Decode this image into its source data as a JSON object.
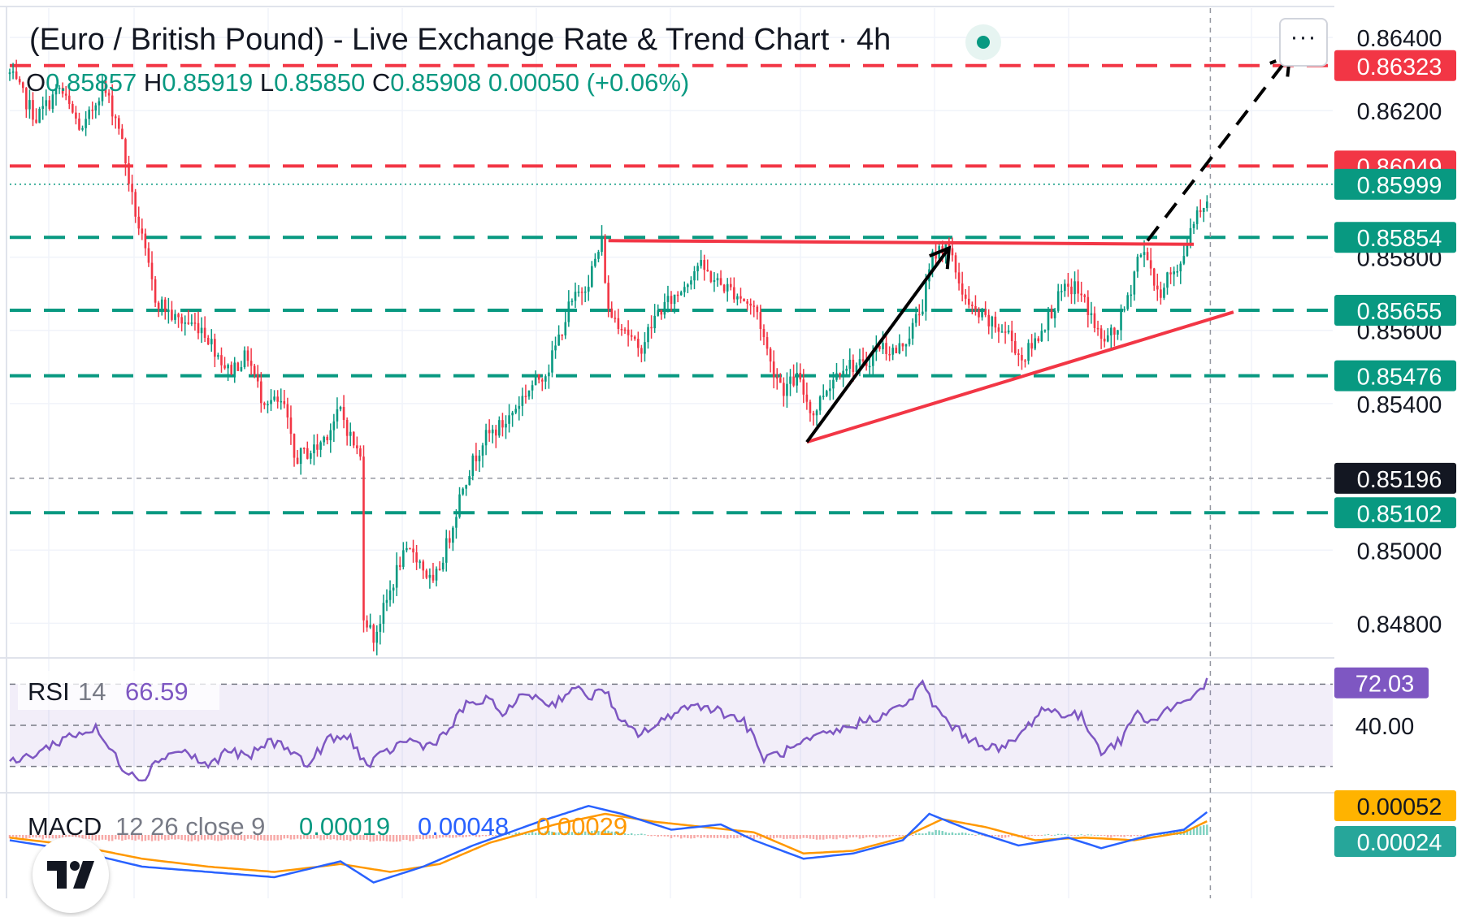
{
  "header": {
    "title": "(Euro / British Pound) - Live Exchange Rate & Trend Chart · 4h",
    "ohlc": {
      "o_label": "O",
      "o": "0.85857",
      "h_label": "H",
      "h": "0.85919",
      "l_label": "L",
      "l": "0.85850",
      "c_label": "C",
      "c": "0.85908",
      "change": "0.00050 (+0.06%)"
    },
    "more_label": "···"
  },
  "colors": {
    "up": "#089981",
    "down": "#f23645",
    "rsi": "#7e57c2",
    "macd": "#2962ff",
    "signal": "#ff9800",
    "resistance": "#f23645",
    "support": "#089981"
  },
  "chart_data": [
    {
      "type": "candlestick",
      "ylim": [
        0.8471,
        0.8648
      ],
      "y_ticks": [
        "0.86400",
        "0.86200",
        "0.85800",
        "0.85600",
        "0.85400",
        "0.85000",
        "0.84800"
      ],
      "y_tick_values": [
        0.864,
        0.862,
        0.858,
        0.856,
        0.854,
        0.85,
        0.848
      ],
      "price_labels": [
        {
          "text": "0.86323",
          "value": 0.86323,
          "kind": "resistance"
        },
        {
          "text": "0.86049",
          "value": 0.86049,
          "kind": "resistance"
        },
        {
          "text": "0.85999",
          "value": 0.85999,
          "kind": "current"
        },
        {
          "text": "0.85854",
          "value": 0.85854,
          "kind": "support"
        },
        {
          "text": "0.85655",
          "value": 0.85655,
          "kind": "support"
        },
        {
          "text": "0.85476",
          "value": 0.85476,
          "kind": "support"
        },
        {
          "text": "0.85196",
          "value": 0.85196,
          "kind": "crosshair"
        },
        {
          "text": "0.85102",
          "value": 0.85102,
          "kind": "support"
        }
      ],
      "close_path": [
        [
          0,
          0.863
        ],
        [
          8,
          0.8618
        ],
        [
          15,
          0.8626
        ],
        [
          22,
          0.8614
        ],
        [
          28,
          0.8627
        ],
        [
          33,
          0.8616
        ],
        [
          37,
          0.8596
        ],
        [
          44,
          0.8569
        ],
        [
          50,
          0.8563
        ],
        [
          58,
          0.8561
        ],
        [
          62,
          0.8555
        ],
        [
          66,
          0.8549
        ],
        [
          72,
          0.8553
        ],
        [
          76,
          0.8542
        ],
        [
          83,
          0.8539
        ],
        [
          86,
          0.8525
        ],
        [
          93,
          0.8528
        ],
        [
          98,
          0.8535
        ],
        [
          100,
          0.8538
        ],
        [
          103,
          0.8531
        ],
        [
          106,
          0.8525
        ],
        [
          107,
          0.8483
        ],
        [
          110,
          0.8476
        ],
        [
          114,
          0.8486
        ],
        [
          118,
          0.8497
        ],
        [
          122,
          0.85
        ],
        [
          128,
          0.849
        ],
        [
          133,
          0.8504
        ],
        [
          137,
          0.8518
        ],
        [
          143,
          0.853
        ],
        [
          150,
          0.8535
        ],
        [
          156,
          0.8543
        ],
        [
          163,
          0.855
        ],
        [
          169,
          0.8566
        ],
        [
          175,
          0.8574
        ],
        [
          179,
          0.8584
        ],
        [
          181,
          0.8565
        ],
        [
          186,
          0.8561
        ],
        [
          190,
          0.8554
        ],
        [
          196,
          0.8565
        ],
        [
          202,
          0.857
        ],
        [
          208,
          0.8578
        ],
        [
          214,
          0.8573
        ],
        [
          220,
          0.857
        ],
        [
          226,
          0.8565
        ],
        [
          230,
          0.8551
        ],
        [
          234,
          0.8544
        ],
        [
          238,
          0.8547
        ],
        [
          243,
          0.8537
        ],
        [
          246,
          0.8543
        ],
        [
          252,
          0.8551
        ],
        [
          258,
          0.855
        ],
        [
          263,
          0.8556
        ],
        [
          268,
          0.8554
        ],
        [
          272,
          0.8559
        ],
        [
          276,
          0.8567
        ],
        [
          279,
          0.858
        ],
        [
          283,
          0.8584
        ],
        [
          286,
          0.8576
        ],
        [
          290,
          0.8566
        ],
        [
          296,
          0.8562
        ],
        [
          302,
          0.8559
        ],
        [
          306,
          0.8552
        ],
        [
          310,
          0.8557
        ],
        [
          314,
          0.8564
        ],
        [
          318,
          0.857
        ],
        [
          322,
          0.8572
        ],
        [
          326,
          0.8566
        ],
        [
          330,
          0.8557
        ],
        [
          334,
          0.8559
        ],
        [
          338,
          0.8568
        ],
        [
          341,
          0.858
        ],
        [
          344,
          0.8581
        ],
        [
          347,
          0.8569
        ],
        [
          350,
          0.8575
        ],
        [
          353,
          0.8575
        ],
        [
          358,
          0.8591
        ],
        [
          362,
          0.8596
        ]
      ],
      "lines": {
        "resistance_levels": [
          0.86323,
          0.86049
        ],
        "support_levels": [
          0.85854,
          0.85655,
          0.85476,
          0.85102
        ],
        "current_price": 0.85999,
        "crosshair_price": 0.85196,
        "neckline": [
          [
            181,
            0.85845
          ],
          [
            358,
            0.85835
          ]
        ],
        "ascending_trendline": [
          [
            241,
            0.85295
          ],
          [
            370,
            0.8565
          ]
        ],
        "impulse_arrow": [
          [
            241,
            0.85295
          ],
          [
            284,
            0.85825
          ]
        ],
        "projection_arrow": [
          [
            344,
            0.85845
          ],
          [
            387,
            0.8635
          ]
        ]
      }
    },
    {
      "type": "line",
      "indicator": "RSI",
      "label": "RSI",
      "period": "14",
      "value": "66.59",
      "last_label": "72.03",
      "level_label": "40.00",
      "band": [
        30,
        70
      ],
      "mid": 50,
      "ylim": [
        18,
        82
      ],
      "values_path": [
        [
          0,
          31
        ],
        [
          10,
          38
        ],
        [
          18,
          45
        ],
        [
          26,
          48
        ],
        [
          34,
          30
        ],
        [
          40,
          24
        ],
        [
          46,
          35
        ],
        [
          52,
          38
        ],
        [
          60,
          30
        ],
        [
          66,
          38
        ],
        [
          72,
          34
        ],
        [
          78,
          42
        ],
        [
          84,
          40
        ],
        [
          90,
          30
        ],
        [
          96,
          43
        ],
        [
          103,
          44
        ],
        [
          108,
          30
        ],
        [
          114,
          37
        ],
        [
          120,
          43
        ],
        [
          126,
          40
        ],
        [
          132,
          46
        ],
        [
          138,
          60
        ],
        [
          144,
          62
        ],
        [
          150,
          56
        ],
        [
          156,
          66
        ],
        [
          164,
          60
        ],
        [
          170,
          68
        ],
        [
          176,
          64
        ],
        [
          180,
          68
        ],
        [
          184,
          52
        ],
        [
          190,
          46
        ],
        [
          196,
          50
        ],
        [
          202,
          58
        ],
        [
          210,
          60
        ],
        [
          216,
          56
        ],
        [
          222,
          52
        ],
        [
          228,
          34
        ],
        [
          236,
          38
        ],
        [
          244,
          44
        ],
        [
          252,
          48
        ],
        [
          258,
          52
        ],
        [
          266,
          56
        ],
        [
          272,
          62
        ],
        [
          276,
          70
        ],
        [
          280,
          58
        ],
        [
          286,
          48
        ],
        [
          292,
          42
        ],
        [
          300,
          38
        ],
        [
          306,
          46
        ],
        [
          312,
          58
        ],
        [
          318,
          56
        ],
        [
          324,
          54
        ],
        [
          330,
          38
        ],
        [
          336,
          42
        ],
        [
          340,
          56
        ],
        [
          346,
          52
        ],
        [
          350,
          58
        ],
        [
          356,
          62
        ],
        [
          360,
          68
        ],
        [
          363,
          72
        ]
      ]
    },
    {
      "type": "line",
      "indicator": "MACD",
      "label": "MACD",
      "params": "12 26 close 9",
      "histogram_value": "0.00019",
      "macd_value": "0.00048",
      "signal_value": "0.00029",
      "labels_right": [
        "0.00052",
        "0.00024"
      ],
      "ylim": [
        -0.0012,
        0.0008
      ],
      "macd_path": [
        [
          0,
          -0.0001
        ],
        [
          20,
          -0.0003
        ],
        [
          40,
          -0.0006
        ],
        [
          60,
          -0.0007
        ],
        [
          80,
          -0.0008
        ],
        [
          100,
          -0.0005
        ],
        [
          110,
          -0.0009
        ],
        [
          125,
          -0.0006
        ],
        [
          140,
          -0.0002
        ],
        [
          160,
          0.00025
        ],
        [
          175,
          0.00055
        ],
        [
          185,
          0.0004
        ],
        [
          200,
          0.0001
        ],
        [
          215,
          0.0002
        ],
        [
          225,
          -0.0001
        ],
        [
          240,
          -0.00045
        ],
        [
          255,
          -0.00035
        ],
        [
          270,
          -0.0001
        ],
        [
          278,
          0.0004
        ],
        [
          290,
          0.0001
        ],
        [
          305,
          -0.0002
        ],
        [
          320,
          -5e-05
        ],
        [
          330,
          -0.00025
        ],
        [
          345,
          0.0
        ],
        [
          355,
          0.0001
        ],
        [
          363,
          0.00048
        ]
      ],
      "signal_path": [
        [
          0,
          -5e-05
        ],
        [
          20,
          -0.0002
        ],
        [
          40,
          -0.00045
        ],
        [
          60,
          -0.0006
        ],
        [
          80,
          -0.0007
        ],
        [
          100,
          -0.00055
        ],
        [
          115,
          -0.0007
        ],
        [
          130,
          -0.00055
        ],
        [
          145,
          -0.00015
        ],
        [
          165,
          0.0002
        ],
        [
          180,
          0.0004
        ],
        [
          195,
          0.00025
        ],
        [
          210,
          0.00015
        ],
        [
          225,
          5e-05
        ],
        [
          240,
          -0.00035
        ],
        [
          255,
          -0.0003
        ],
        [
          270,
          -5e-05
        ],
        [
          282,
          0.0003
        ],
        [
          295,
          0.00015
        ],
        [
          310,
          -0.0001
        ],
        [
          325,
          -5e-05
        ],
        [
          340,
          -0.0001
        ],
        [
          355,
          5e-05
        ],
        [
          363,
          0.00029
        ]
      ],
      "histogram_path": [
        [
          0,
          -5e-05
        ],
        [
          30,
          -0.0001
        ],
        [
          60,
          -0.0001
        ],
        [
          90,
          -8e-05
        ],
        [
          115,
          -0.00012
        ],
        [
          140,
          -3e-05
        ],
        [
          160,
          6e-05
        ],
        [
          180,
          8e-05
        ],
        [
          200,
          -5e-05
        ],
        [
          225,
          -6e-05
        ],
        [
          245,
          -8e-05
        ],
        [
          270,
          -3e-05
        ],
        [
          280,
          8e-05
        ],
        [
          300,
          -4e-05
        ],
        [
          320,
          2e-05
        ],
        [
          335,
          -4e-05
        ],
        [
          350,
          4e-05
        ],
        [
          363,
          0.00019
        ]
      ]
    }
  ]
}
